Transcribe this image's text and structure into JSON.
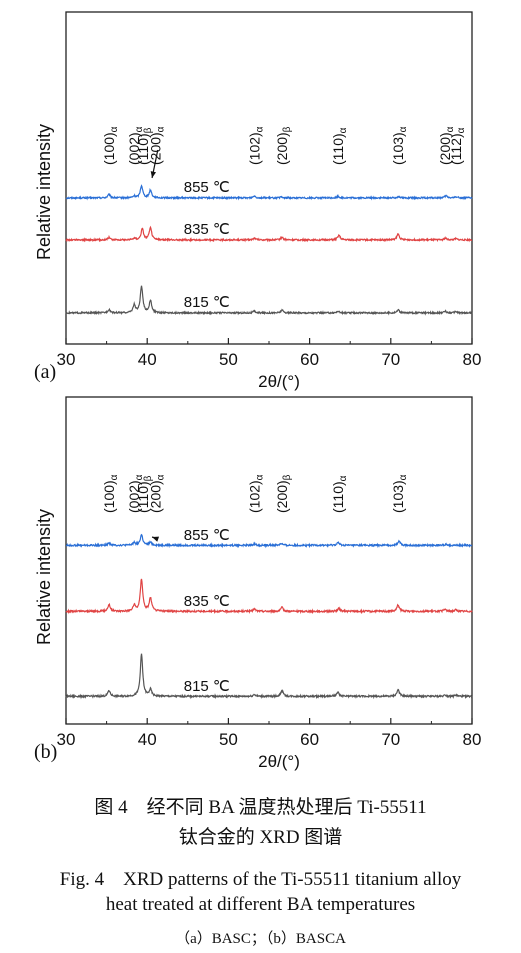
{
  "chart_data": [
    {
      "type": "line",
      "panel_label": "(a)",
      "xlabel": "2θ/(°)",
      "ylabel": "Relative intensity",
      "xlim": [
        30,
        80
      ],
      "xticks": [
        "30",
        "40",
        "50",
        "60",
        "70",
        "80"
      ],
      "grid": false,
      "series": [
        {
          "name": "855 ℃",
          "color": "#2a6fd6",
          "baseline": 0.3,
          "peaks": [
            [
              35.3,
              0.2
            ],
            [
              38.4,
              0.1
            ],
            [
              39.3,
              0.72
            ],
            [
              40.4,
              0.45
            ],
            [
              53.2,
              0.12
            ],
            [
              56.5,
              0.04
            ],
            [
              63.5,
              0.09
            ],
            [
              71.0,
              0.09
            ],
            [
              76.8,
              0.12
            ],
            [
              78.1,
              0.07
            ]
          ]
        },
        {
          "name": "835 ℃",
          "color": "#e04444",
          "baseline": 0.3,
          "peaks": [
            [
              35.3,
              0.15
            ],
            [
              38.4,
              0.1
            ],
            [
              39.4,
              0.65
            ],
            [
              40.4,
              0.7
            ],
            [
              53.2,
              0.1
            ],
            [
              56.6,
              0.16
            ],
            [
              63.6,
              0.28
            ],
            [
              70.9,
              0.35
            ],
            [
              76.7,
              0.1
            ],
            [
              78.0,
              0.07
            ]
          ]
        },
        {
          "name": "815 ℃",
          "color": "#555555",
          "baseline": 0.3,
          "peaks": [
            [
              35.3,
              0.2
            ],
            [
              38.4,
              0.45
            ],
            [
              39.3,
              1.55
            ],
            [
              40.4,
              0.7
            ],
            [
              53.2,
              0.1
            ],
            [
              56.6,
              0.16
            ],
            [
              63.5,
              0.1
            ],
            [
              70.9,
              0.17
            ],
            [
              76.7,
              0.1
            ],
            [
              78.0,
              0.08
            ]
          ]
        }
      ],
      "annotations": [
        {
          "label": "(100)",
          "sub": "α",
          "x": 35.3
        },
        {
          "label": "(002)",
          "sub": "α",
          "x": 38.4
        },
        {
          "label": "(110)",
          "sub": "β",
          "x": 39.5
        },
        {
          "label": "(200)",
          "sub": "α",
          "x": 41.0
        },
        {
          "label": "(102)",
          "sub": "α",
          "x": 53.2
        },
        {
          "label": "(200)",
          "sub": "β",
          "x": 56.6
        },
        {
          "label": "(110)",
          "sub": "α",
          "x": 63.5
        },
        {
          "label": "(103)",
          "sub": "α",
          "x": 70.9
        },
        {
          "label": "(200)",
          "sub": "α",
          "x": 76.7
        },
        {
          "label": "(112)",
          "sub": "α",
          "x": 78.0
        }
      ]
    },
    {
      "type": "line",
      "panel_label": "(b)",
      "xlabel": "2θ/(°)",
      "ylabel": "Relative intensity",
      "xlim": [
        30,
        80
      ],
      "xticks": [
        "30",
        "40",
        "50",
        "60",
        "70",
        "80"
      ],
      "grid": false,
      "series": [
        {
          "name": "855 ℃",
          "color": "#2a6fd6",
          "baseline": 0.3,
          "peaks": [
            [
              35.3,
              0.12
            ],
            [
              38.4,
              0.15
            ],
            [
              39.3,
              0.55
            ],
            [
              40.4,
              0.15
            ],
            [
              53.2,
              0.08
            ],
            [
              56.5,
              0.1
            ],
            [
              63.5,
              0.14
            ],
            [
              71.0,
              0.22
            ],
            [
              76.8,
              0.06
            ]
          ]
        },
        {
          "name": "835 ℃",
          "color": "#e04444",
          "baseline": 0.3,
          "peaks": [
            [
              35.3,
              0.35
            ],
            [
              38.4,
              0.3
            ],
            [
              39.3,
              1.7
            ],
            [
              40.4,
              0.7
            ],
            [
              53.2,
              0.12
            ],
            [
              56.6,
              0.2
            ],
            [
              63.6,
              0.14
            ],
            [
              70.9,
              0.32
            ],
            [
              76.7,
              0.1
            ],
            [
              78.0,
              0.08
            ]
          ]
        },
        {
          "name": "815 ℃",
          "color": "#555555",
          "baseline": 0.3,
          "peaks": [
            [
              35.3,
              0.3
            ],
            [
              39.3,
              2.2
            ],
            [
              40.4,
              0.35
            ],
            [
              53.2,
              0.1
            ],
            [
              56.6,
              0.3
            ],
            [
              63.5,
              0.2
            ],
            [
              70.9,
              0.35
            ],
            [
              76.7,
              0.07
            ],
            [
              78.0,
              0.06
            ]
          ]
        }
      ],
      "annotations": [
        {
          "label": "(100)",
          "sub": "α",
          "x": 35.3
        },
        {
          "label": "(002)",
          "sub": "α",
          "x": 38.4
        },
        {
          "label": "(110)",
          "sub": "β",
          "x": 39.5
        },
        {
          "label": "(200)",
          "sub": "α",
          "x": 41.0
        },
        {
          "label": "(102)",
          "sub": "α",
          "x": 53.2
        },
        {
          "label": "(200)",
          "sub": "β",
          "x": 56.6
        },
        {
          "label": "(110)",
          "sub": "α",
          "x": 63.5
        },
        {
          "label": "(103)",
          "sub": "α",
          "x": 70.9
        }
      ]
    }
  ],
  "caption": {
    "zh_line1": "图 4　经不同 BA 温度热处理后 Ti-55511",
    "zh_line2": "钛合金的 XRD 图谱",
    "en_line1": "Fig. 4　XRD patterns of the Ti-55511 titanium alloy",
    "en_line2": "heat treated at different BA temperatures",
    "sub": "（a）BASC；（b）BASCA"
  }
}
